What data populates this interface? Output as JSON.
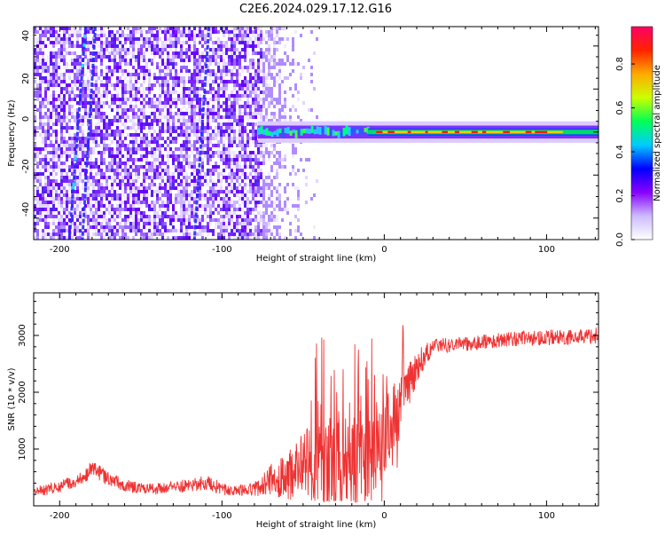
{
  "title": "C2E6.2024.029.17.12.G16",
  "chart_data": [
    {
      "type": "heatmap",
      "xlabel": "Height of straight line (km)",
      "ylabel": "Frequency (Hz)",
      "xlim": [
        -216,
        132
      ],
      "ylim": [
        -50,
        49
      ],
      "xticks": [
        -200,
        -100,
        0,
        100
      ],
      "yticks": [
        -40,
        -20,
        0,
        20,
        40
      ],
      "colorbar": {
        "label": "Normalized spectral amplitude",
        "range": [
          0,
          0.97
        ],
        "ticks": [
          0.0,
          0.2,
          0.4,
          0.6,
          0.8
        ],
        "colors": [
          "#ffffff",
          "#ccbbff",
          "#8800ff",
          "#0000ff",
          "#00ccff",
          "#00ff55",
          "#ccff00",
          "#ffaa00",
          "#ff2200",
          "#ff0066"
        ]
      },
      "features": {
        "noise_region_x": [
          -216,
          -40
        ],
        "signal_band_start_x": -78,
        "signal_band_center_hz": 0,
        "signal_band_halfwidth_hz": 3,
        "diagonal_tracks": [
          {
            "x_at_top": -184,
            "x_at_bottom": -194
          },
          {
            "x_at_top": -178,
            "x_at_bottom": -186
          },
          {
            "x_at_top": -108,
            "x_at_bottom": -117
          }
        ]
      },
      "grid": false
    },
    {
      "type": "line",
      "xlabel": "Height of straight line (km)",
      "ylabel": "SNR (10 * v/v)",
      "xlim": [
        -216,
        132
      ],
      "ylim": [
        0,
        3750
      ],
      "xticks": [
        -200,
        -100,
        0,
        100
      ],
      "yticks": [
        1000,
        2000,
        3000
      ],
      "color": "#ee3333",
      "x": [
        -216,
        -200,
        -190,
        -180,
        -170,
        -160,
        -150,
        -140,
        -130,
        -120,
        -110,
        -100,
        -90,
        -80,
        -75,
        -70,
        -60,
        -55,
        -50,
        -45,
        -40,
        -35,
        -30,
        -25,
        -20,
        -15,
        -10,
        -5,
        0,
        5,
        10,
        15,
        20,
        25,
        30,
        40,
        60,
        80,
        100,
        120,
        132
      ],
      "y": [
        240,
        330,
        450,
        640,
        480,
        360,
        300,
        300,
        320,
        370,
        420,
        300,
        270,
        290,
        380,
        460,
        520,
        620,
        720,
        860,
        850,
        820,
        720,
        780,
        820,
        900,
        980,
        1080,
        1230,
        1530,
        1800,
        2100,
        2400,
        2680,
        2800,
        2830,
        2880,
        2940,
        2960,
        2980,
        3000
      ],
      "spread": [
        90,
        100,
        120,
        150,
        130,
        110,
        100,
        100,
        110,
        120,
        140,
        120,
        100,
        120,
        220,
        280,
        420,
        520,
        620,
        700,
        780,
        800,
        760,
        780,
        800,
        820,
        800,
        760,
        700,
        600,
        500,
        400,
        300,
        220,
        150,
        130,
        130,
        130,
        140,
        140,
        150
      ],
      "grid": false
    }
  ]
}
